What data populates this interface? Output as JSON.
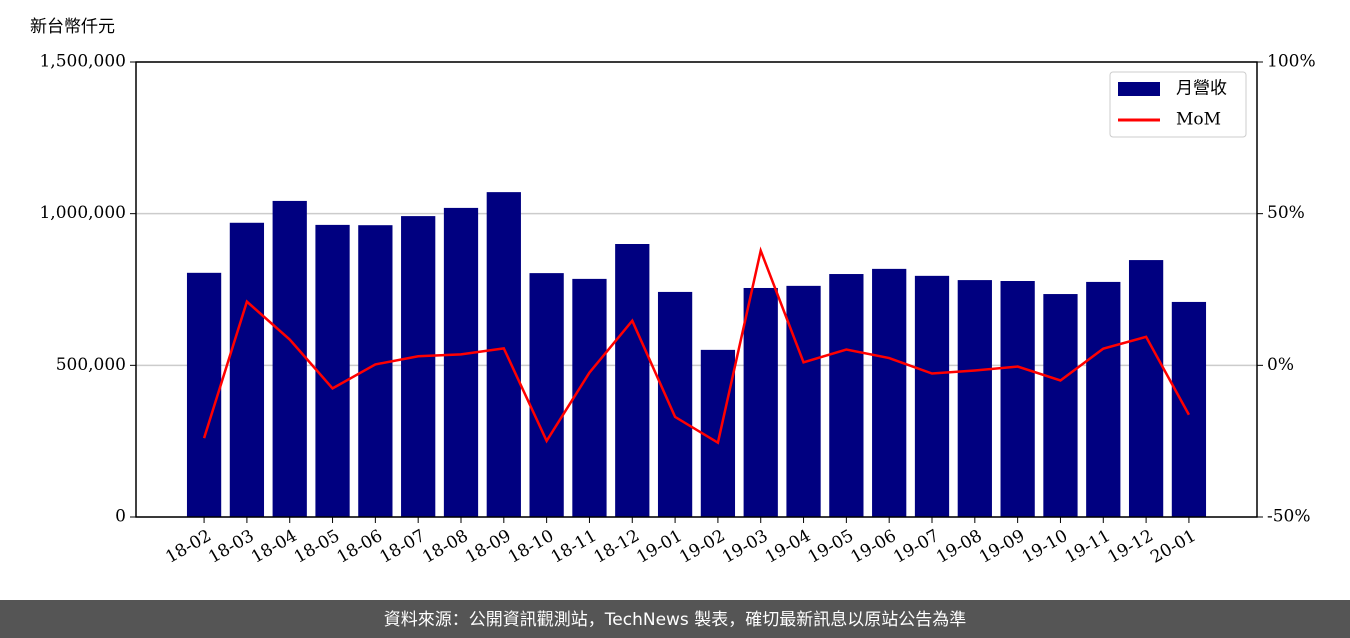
{
  "chart_data": {
    "type": "bar",
    "y_label": "新台幣仟元",
    "categories": [
      "18-02",
      "18-03",
      "18-04",
      "18-05",
      "18-06",
      "18-07",
      "18-08",
      "18-09",
      "18-10",
      "18-11",
      "18-12",
      "19-01",
      "19-02",
      "19-03",
      "19-04",
      "19-05",
      "19-06",
      "19-07",
      "19-08",
      "19-09",
      "19-10",
      "19-11",
      "19-12",
      "20-01"
    ],
    "series": [
      {
        "name": "月營收",
        "type": "bar",
        "color": "#000080",
        "axis": "y",
        "values": [
          805000,
          970000,
          1042000,
          963000,
          962000,
          992000,
          1019000,
          1071000,
          804000,
          785000,
          900000,
          742000,
          551000,
          755000,
          762000,
          801000,
          818000,
          795000,
          781000,
          778000,
          735000,
          775000,
          847000,
          709000
        ]
      },
      {
        "name": "MoM",
        "type": "line",
        "color": "#ff0000",
        "axis": "y2",
        "values": [
          -24,
          21,
          8.5,
          -7.6,
          0.3,
          3,
          3.6,
          5.6,
          -24.9,
          -2.4,
          14.7,
          -17,
          -25.5,
          37.8,
          1,
          5.2,
          2.4,
          -2.7,
          -1.7,
          -0.4,
          -5,
          5.5,
          9.4,
          -16.3
        ]
      }
    ],
    "ylim": [
      0,
      1500000
    ],
    "yticks": [
      0,
      {
        "value": 500000,
        "label": "500,000"
      },
      {
        "value": 1000000,
        "label": "1,000,000"
      },
      {
        "value": 1500000,
        "label": "1,500,000"
      }
    ],
    "y2lim": [
      -50,
      100
    ],
    "y2ticks": [
      {
        "value": -50,
        "label": "-50%"
      },
      {
        "value": 0,
        "label": "0%"
      },
      {
        "value": 50,
        "label": "50%"
      },
      {
        "value": 100,
        "label": "100%"
      }
    ],
    "grid": true,
    "legend": "upper right"
  },
  "footer": "資料來源：公開資訊觀測站，TechNews 製表，確切最新訊息以原站公告為準"
}
